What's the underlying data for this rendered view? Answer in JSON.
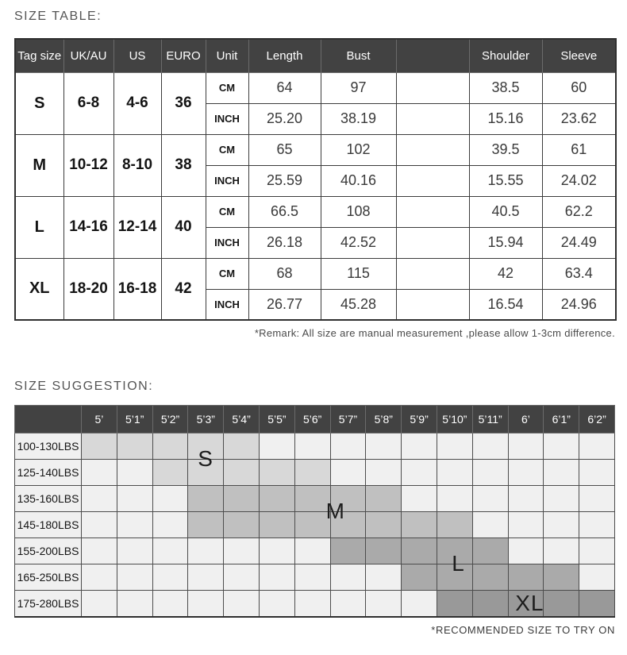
{
  "size_table": {
    "title": "SIZE TABLE:",
    "headers": [
      "Tag size",
      "UK/AU",
      "US",
      "EURO",
      "Unit",
      "Length",
      "Bust",
      "",
      "Shoulder",
      "Sleeve"
    ],
    "unit_labels": [
      "CM",
      "INCH"
    ],
    "rows": [
      {
        "tag": "S",
        "uk_au": "6-8",
        "us": "4-6",
        "euro": "36",
        "cm": [
          "64",
          "97",
          "",
          "38.5",
          "60"
        ],
        "inch": [
          "25.20",
          "38.19",
          "",
          "15.16",
          "23.62"
        ]
      },
      {
        "tag": "M",
        "uk_au": "10-12",
        "us": "8-10",
        "euro": "38",
        "cm": [
          "65",
          "102",
          "",
          "39.5",
          "61"
        ],
        "inch": [
          "25.59",
          "40.16",
          "",
          "15.55",
          "24.02"
        ]
      },
      {
        "tag": "L",
        "uk_au": "14-16",
        "us": "12-14",
        "euro": "40",
        "cm": [
          "66.5",
          "108",
          "",
          "40.5",
          "62.2"
        ],
        "inch": [
          "26.18",
          "42.52",
          "",
          "15.94",
          "24.49"
        ]
      },
      {
        "tag": "XL",
        "uk_au": "18-20",
        "us": "16-18",
        "euro": "42",
        "cm": [
          "68",
          "115",
          "",
          "42",
          "63.4"
        ],
        "inch": [
          "26.77",
          "45.28",
          "",
          "16.54",
          "24.96"
        ]
      }
    ],
    "remark": "*Remark: All size are manual measurement ,please allow 1-3cm difference."
  },
  "size_suggestion": {
    "title": "SIZE SUGGESTION:",
    "height_columns": [
      "5’",
      "5’1”",
      "5’2”",
      "5’3”",
      "5’4”",
      "5’5”",
      "5’6”",
      "5’7”",
      "5’8”",
      "5’9”",
      "5’10”",
      "5’11”",
      "6’",
      "6’1”",
      "6’2”"
    ],
    "weight_rows": [
      "100-130LBS",
      "125-140LBS",
      "135-160LBS",
      "145-180LBS",
      "155-200LBS",
      "165-250LBS",
      "175-280LBS"
    ],
    "bands": [
      {
        "label": "S",
        "color": "#d8d8d8",
        "spans": [
          {
            "row": 0,
            "from": 1,
            "to": 5
          },
          {
            "row": 1,
            "from": 3,
            "to": 7
          }
        ],
        "label_at": {
          "col": 4.0,
          "row_anchor": 1.0
        }
      },
      {
        "label": "M",
        "color": "#c0c0c0",
        "spans": [
          {
            "row": 2,
            "from": 4,
            "to": 9
          },
          {
            "row": 3,
            "from": 4,
            "to": 11
          }
        ],
        "label_at": {
          "col": 7.65,
          "row_anchor": 3.0
        }
      },
      {
        "label": "L",
        "color": "#aaaaaa",
        "spans": [
          {
            "row": 4,
            "from": 8,
            "to": 12
          },
          {
            "row": 5,
            "from": 10,
            "to": 14
          }
        ],
        "label_at": {
          "col": 11.1,
          "row_anchor": 5.0
        }
      },
      {
        "label": "XL",
        "color": "#999999",
        "spans": [
          {
            "row": 6,
            "from": 11,
            "to": 15
          }
        ],
        "label_at": {
          "col": 13.1,
          "row_anchor": 6.5
        }
      }
    ],
    "note": "*RECOMMENDED SIZE TO TRY ON"
  },
  "colors": {
    "header_bg": "#424242",
    "header_text": "#ffffff",
    "cell_bg": "#f0f0f0",
    "band_s": "#d8d8d8",
    "band_m": "#c0c0c0",
    "band_l": "#aaaaaa",
    "band_xl": "#999999"
  },
  "chart_data": [
    {
      "type": "table",
      "title": "SIZE TABLE:",
      "columns": [
        "Tag size",
        "UK/AU",
        "US",
        "EURO",
        "Unit",
        "Length",
        "Bust",
        "Shoulder",
        "Sleeve"
      ],
      "rows": [
        [
          "S",
          "6-8",
          "4-6",
          "36",
          "CM",
          "64",
          "97",
          "38.5",
          "60"
        ],
        [
          "S",
          "6-8",
          "4-6",
          "36",
          "INCH",
          "25.20",
          "38.19",
          "15.16",
          "23.62"
        ],
        [
          "M",
          "10-12",
          "8-10",
          "38",
          "CM",
          "65",
          "102",
          "39.5",
          "61"
        ],
        [
          "M",
          "10-12",
          "8-10",
          "38",
          "INCH",
          "25.59",
          "40.16",
          "15.55",
          "24.02"
        ],
        [
          "L",
          "14-16",
          "12-14",
          "40",
          "CM",
          "66.5",
          "108",
          "40.5",
          "62.2"
        ],
        [
          "L",
          "14-16",
          "12-14",
          "40",
          "INCH",
          "26.18",
          "42.52",
          "15.94",
          "24.49"
        ],
        [
          "XL",
          "18-20",
          "16-18",
          "42",
          "CM",
          "68",
          "115",
          "42",
          "63.4"
        ],
        [
          "XL",
          "18-20",
          "16-18",
          "42",
          "INCH",
          "26.77",
          "45.28",
          "16.54",
          "24.96"
        ]
      ],
      "note": "*Remark: All size are manual measurement ,please allow 1-3cm difference."
    },
    {
      "type": "heatmap",
      "title": "SIZE SUGGESTION:",
      "x": [
        "5’",
        "5’1”",
        "5’2”",
        "5’3”",
        "5’4”",
        "5’5”",
        "5’6”",
        "5’7”",
        "5’8”",
        "5’9”",
        "5’10”",
        "5’11”",
        "6’",
        "6’1”",
        "6’2”"
      ],
      "y": [
        "100-130LBS",
        "125-140LBS",
        "135-160LBS",
        "145-180LBS",
        "155-200LBS",
        "165-250LBS",
        "175-280LBS"
      ],
      "cells": [
        {
          "weight": "100-130LBS",
          "size": "S",
          "height_range": [
            "5’",
            "5’4”"
          ]
        },
        {
          "weight": "125-140LBS",
          "size": "S",
          "height_range": [
            "5’2”",
            "5’6”"
          ]
        },
        {
          "weight": "135-160LBS",
          "size": "M",
          "height_range": [
            "5’3”",
            "5’8”"
          ]
        },
        {
          "weight": "145-180LBS",
          "size": "M",
          "height_range": [
            "5’3”",
            "5’10”"
          ]
        },
        {
          "weight": "155-200LBS",
          "size": "L",
          "height_range": [
            "5’7”",
            "5’11”"
          ]
        },
        {
          "weight": "165-250LBS",
          "size": "L",
          "height_range": [
            "5’9”",
            "6’1”"
          ]
        },
        {
          "weight": "175-280LBS",
          "size": "XL",
          "height_range": [
            "5’10”",
            "6’2”"
          ]
        }
      ],
      "legend_position": "none",
      "grid": true,
      "note": "*RECOMMENDED SIZE TO TRY ON"
    }
  ]
}
